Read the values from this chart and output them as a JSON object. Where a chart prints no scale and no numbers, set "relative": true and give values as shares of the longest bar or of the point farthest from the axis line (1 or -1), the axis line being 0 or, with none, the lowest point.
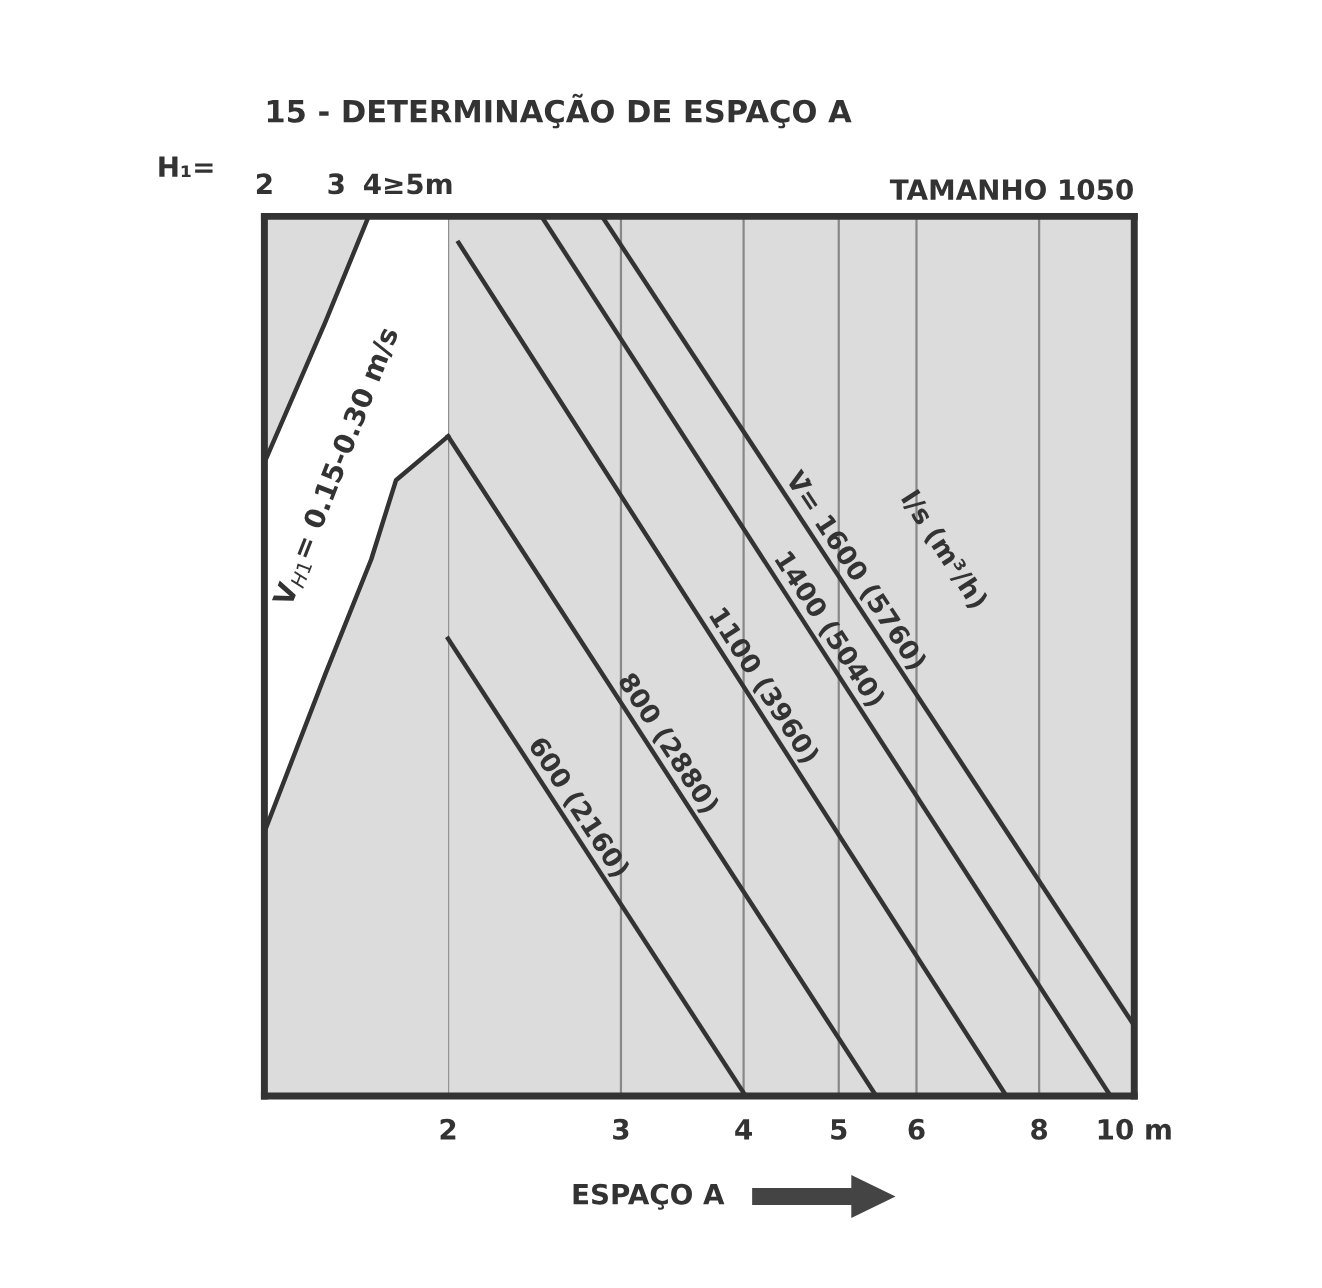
{
  "chart_data": {
    "type": "line",
    "title": "15 - DETERMINAÇÃO DE ESPAÇO A",
    "subtitle": "TAMANHO 1050",
    "xlabel": "ESPAÇO A",
    "x2label": "H₁=",
    "log": "x",
    "relative": true,
    "grid": "x",
    "legend": false,
    "xlim": [
      1.3,
      10
    ],
    "xticks": [
      2,
      3,
      4,
      5,
      6,
      8,
      {
        "value": 10,
        "label": "10 m"
      }
    ],
    "x2lim": [
      2,
      14.1
    ],
    "x2ticks": [
      2,
      3,
      {
        "value": 4,
        "label": "4≥5m"
      }
    ],
    "annotations": [
      "l/s (m³/h)"
    ],
    "series": [
      {
        "type": "area",
        "color": "#ffffff",
        "x": [
          1.3,
          1.5,
          1.66,
          2
        ],
        "values": [
          0.72,
          0.88,
          1,
          1
        ]
      },
      {
        "type": "area",
        "name": "V$_{H1}$= 0.15-0.30 m/s",
        "color": "#dcdcdc",
        "x": [
          1.3,
          1.5,
          1.67,
          1.77,
          2
        ],
        "values": [
          0.3,
          0.48,
          0.61,
          0.7,
          0.75
        ]
      },
      {
        "name": "600 (2160)",
        "color": "#333333",
        "x": [
          2,
          4.02
        ],
        "values": [
          0.52,
          0
        ]
      },
      {
        "name": "800 (2880)",
        "color": "#333333",
        "x": [
          2,
          5.46
        ],
        "values": [
          0.75,
          0
        ]
      },
      {
        "name": "1100 (3960)",
        "color": "#333333",
        "x": [
          2.05,
          7.41
        ],
        "values": [
          0.97,
          0
        ]
      },
      {
        "name": "1400 (5040)",
        "color": "#333333",
        "x": [
          2.49,
          9.46
        ],
        "values": [
          1,
          0
        ]
      },
      {
        "name": "V̇= 1600 (5760)",
        "color": "#333333",
        "x": [
          2.87,
          10
        ],
        "values": [
          1,
          0.08
        ]
      }
    ]
  }
}
